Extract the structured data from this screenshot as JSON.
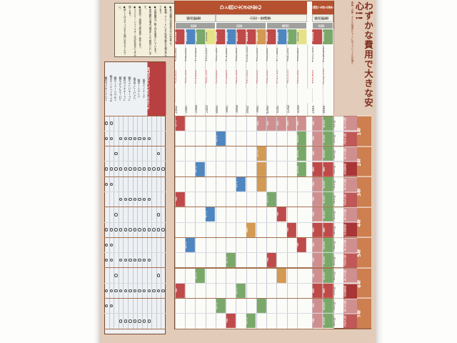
{
  "title": {
    "text": "わずかな費用で大きな安心!!",
    "caption": "車検・点検・オイル交換がセットになってとってもお得!!",
    "color": "#7d2f1f"
  },
  "note_box": {
    "lines": [
      "●表示価格は消費税込みの料金です。",
      "●車種・グレードにより料金が異なる場合があります。",
      "●点検時期はご購入月を基準としています。",
      "●途中解約の場合は規定により精算いたします。",
      "●部品代・油脂代は別途申し受けます。",
      "●エアクリーンフィルターは汚れ具合により交換します。",
      "●詳しくはスタッフまでお問い合わせください。"
    ]
  },
  "left_panel": {
    "header": "メンテナンスパックの内容",
    "items": [
      "エンジンオイル交換",
      "オイルエレメント交換",
      "エアクリーナー点検",
      "スパークプラグ点検",
      "ブレーキオイル交換",
      "ブレーキパッド点検",
      "ワイパーゴム交換",
      "バッテリー点検",
      "クーラント交換",
      "タイヤローテーション",
      "電子制御システム診断",
      "ファンベルト点検",
      "下まわり点検"
    ],
    "circles": [
      [
        0,
        1
      ],
      [
        0,
        1,
        3,
        4,
        5,
        6,
        7,
        8,
        9
      ],
      [
        2,
        11
      ],
      [
        0,
        1,
        2,
        3,
        4,
        5,
        6,
        7,
        8,
        9,
        10,
        11,
        12
      ],
      [
        0,
        1
      ],
      [
        3,
        4,
        5,
        6,
        7,
        8,
        9
      ],
      [
        2,
        11
      ],
      [
        0,
        1,
        2,
        3,
        4,
        5,
        6,
        7,
        8,
        9,
        10,
        11,
        12
      ],
      [
        0,
        1
      ],
      [
        0,
        1,
        3,
        4,
        5,
        6,
        7,
        8,
        9
      ],
      [
        2,
        11
      ],
      [
        0,
        1,
        2,
        3,
        4,
        5,
        6,
        7,
        8,
        9,
        10,
        11,
        12
      ],
      [
        0,
        1
      ],
      [
        3,
        4,
        5,
        6,
        7,
        8,
        9
      ]
    ]
  },
  "table": {
    "bands": [
      {
        "label": "ひと回り大きな安心"
      },
      {
        "label": "ひと回り大きな安心"
      }
    ],
    "class_groups": [
      "軽自動車",
      "小型・普通車",
      "軽自動車"
    ],
    "term_groups": [
      "新車",
      "新車",
      "継続",
      "新車"
    ],
    "columns": [
      {
        "code": "36SA",
        "color": "R",
        "price1": "¥58,080",
        "price2": "¥54,810",
        "sub": "24KD"
      },
      {
        "code": "36SB",
        "color": "B",
        "price1": "¥68,280",
        "price2": "¥64,510",
        "sub": "24KC"
      },
      {
        "code": "36SC",
        "color": "G",
        "price1": "¥79,080",
        "price2": "¥74,810",
        "sub": "24KB"
      },
      {
        "code": "36SD",
        "color": "Y",
        "price1": "¥93,280",
        "price2": "¥88,510",
        "sub": "24KA"
      },
      {
        "code": "42SA",
        "color": "R",
        "price1": "¥63,580",
        "price2": "¥59,810",
        "sub": "30KD"
      },
      {
        "code": "42SB",
        "color": "B",
        "price1": "¥74,880",
        "price2": "¥70,810",
        "sub": "30KC"
      },
      {
        "code": "42SC",
        "color": "R",
        "price1": "¥86,080",
        "price2": "¥81,510",
        "sub": "30KB"
      },
      {
        "code": "48SA",
        "color": "R",
        "price1": "¥100,280",
        "price2": "¥95,040",
        "sub": "36KD"
      },
      {
        "code": "48SB",
        "color": "O",
        "price1": "¥95,040",
        "price2": "¥89,810",
        "sub": "36KC"
      },
      {
        "code": "60SA",
        "color": "R",
        "price1": "¥66,880",
        "price2": "¥62,040",
        "sub": "42KD"
      },
      {
        "code": "60SB",
        "color": "B",
        "price1": "¥77,880",
        "price2": "¥72,710",
        "sub": "42KC"
      },
      {
        "code": "60SC",
        "color": "G",
        "price1": "¥88,280",
        "price2": "¥83,050",
        "sub": "42KB"
      },
      {
        "code": "60SD",
        "color": "Y",
        "price1": "¥99,880",
        "price2": "¥93,500",
        "sub": "42KA"
      },
      {
        "code": "36KA",
        "color": "R",
        "price1": "¥105,600",
        "price2": "¥99,800",
        "sub": "24NA"
      },
      {
        "code": "42KA",
        "color": "G",
        "price1": "¥118,800",
        "price2": "¥112,310",
        "sub": "30NA"
      }
    ],
    "months": [
      "6ヶ月",
      "12ヶ月",
      "18ヶ月",
      "24ヶ月",
      "30ヶ月",
      "36ヶ月",
      "42ヶ月",
      "48ヶ月",
      "54ヶ月",
      "60ヶ月",
      "66ヶ月",
      "72ヶ月",
      "78ヶ月",
      "84ヶ月"
    ],
    "names": [
      "安心点検",
      "法定点検",
      "安心点検",
      "車検整備",
      "安心点検",
      "法定点検",
      "安心点検",
      "車検整備",
      "安心点検",
      "法定点検",
      "安心点検",
      "車検整備",
      "安心点検",
      "法定点検"
    ],
    "name_colors": [
      "P",
      "R2",
      "P",
      "D",
      "P",
      "R2",
      "P",
      "D",
      "P",
      "R2",
      "P",
      "D",
      "P",
      "R2"
    ],
    "years": [
      "1年",
      "2年",
      "3年",
      "4年",
      "5年",
      "6年",
      "7年"
    ],
    "cells": [
      {
        "r": 0,
        "c": 0,
        "color": "R",
        "t": "オイル"
      },
      {
        "r": 0,
        "c": 8,
        "color": "P",
        "t": "初回"
      },
      {
        "r": 0,
        "c": 9,
        "color": "P",
        "t": "初回"
      },
      {
        "r": 0,
        "c": 10,
        "color": "P",
        "t": "初回"
      },
      {
        "r": 0,
        "c": 11,
        "color": "P",
        "t": "初回"
      },
      {
        "r": 0,
        "c": 12,
        "color": "P",
        "t": "初回"
      },
      {
        "r": 0,
        "c": 13,
        "color": "P",
        "t": "点検"
      },
      {
        "r": 0,
        "c": 14,
        "color": "G",
        "t": "¥6,600"
      },
      {
        "r": 1,
        "c": 4,
        "color": "B",
        "t": "オイル"
      },
      {
        "r": 1,
        "c": 12,
        "color": "G",
        "t": "¥6,600"
      },
      {
        "r": 1,
        "c": 13,
        "color": "P",
        "t": "点検"
      },
      {
        "r": 1,
        "c": 14,
        "color": "G",
        "t": "¥8,800"
      },
      {
        "r": 2,
        "c": 8,
        "color": "O",
        "t": "12ヶ月"
      },
      {
        "r": 2,
        "c": 12,
        "color": "G",
        "t": "¥6,600"
      },
      {
        "r": 2,
        "c": 13,
        "color": "P",
        "t": "点検"
      },
      {
        "r": 2,
        "c": 14,
        "color": "G",
        "t": "¥6,600"
      },
      {
        "r": 3,
        "c": 2,
        "color": "B",
        "t": "オイル"
      },
      {
        "r": 3,
        "c": 8,
        "color": "O",
        "t": ""
      },
      {
        "r": 3,
        "c": 12,
        "color": "G",
        "t": "¥8,800"
      },
      {
        "r": 3,
        "c": 13,
        "color": "R",
        "t": "車検"
      },
      {
        "r": 3,
        "c": 14,
        "color": "R",
        "t": "車検"
      },
      {
        "r": 4,
        "c": 6,
        "color": "B",
        "t": "オイル"
      },
      {
        "r": 4,
        "c": 8,
        "color": "O",
        "t": ""
      },
      {
        "r": 4,
        "c": 13,
        "color": "P",
        "t": "点検"
      },
      {
        "r": 4,
        "c": 14,
        "color": "G",
        "t": "¥6,600"
      },
      {
        "r": 5,
        "c": 0,
        "color": "R",
        "t": "点検"
      },
      {
        "r": 5,
        "c": 9,
        "color": "G",
        "t": "オイル"
      },
      {
        "r": 5,
        "c": 13,
        "color": "P",
        "t": "点検"
      },
      {
        "r": 5,
        "c": 14,
        "color": "G",
        "t": "¥8,800"
      },
      {
        "r": 6,
        "c": 3,
        "color": "B",
        "t": "オイル"
      },
      {
        "r": 6,
        "c": 10,
        "color": "R",
        "t": "点検"
      },
      {
        "r": 6,
        "c": 13,
        "color": "P",
        "t": "点検"
      },
      {
        "r": 6,
        "c": 14,
        "color": "G",
        "t": "¥6,600"
      },
      {
        "r": 7,
        "c": 7,
        "color": "O",
        "t": "車検"
      },
      {
        "r": 7,
        "c": 11,
        "color": "R",
        "t": "点検"
      },
      {
        "r": 7,
        "c": 13,
        "color": "R",
        "t": "車検"
      },
      {
        "r": 7,
        "c": 14,
        "color": "R",
        "t": "車検"
      },
      {
        "r": 8,
        "c": 1,
        "color": "B",
        "t": "オイル"
      },
      {
        "r": 8,
        "c": 12,
        "color": "R",
        "t": "点検"
      },
      {
        "r": 8,
        "c": 13,
        "color": "P",
        "t": "点検"
      },
      {
        "r": 8,
        "c": 14,
        "color": "G",
        "t": "¥6,600"
      },
      {
        "r": 9,
        "c": 5,
        "color": "G",
        "t": "オイル"
      },
      {
        "r": 9,
        "c": 9,
        "color": "R",
        "t": "点検"
      },
      {
        "r": 9,
        "c": 13,
        "color": "P",
        "t": "点検"
      },
      {
        "r": 9,
        "c": 14,
        "color": "G",
        "t": "¥8,800"
      },
      {
        "r": 10,
        "c": 2,
        "color": "G",
        "t": "オイル"
      },
      {
        "r": 10,
        "c": 10,
        "color": "O",
        "t": ""
      },
      {
        "r": 10,
        "c": 13,
        "color": "P",
        "t": "点検"
      },
      {
        "r": 10,
        "c": 14,
        "color": "G",
        "t": "¥6,600"
      },
      {
        "r": 11,
        "c": 0,
        "color": "R",
        "t": "点検"
      },
      {
        "r": 11,
        "c": 6,
        "color": "G",
        "t": "オイル"
      },
      {
        "r": 11,
        "c": 13,
        "color": "R",
        "t": "車検"
      },
      {
        "r": 11,
        "c": 14,
        "color": "R",
        "t": "車検"
      },
      {
        "r": 12,
        "c": 4,
        "color": "G",
        "t": "オイル"
      },
      {
        "r": 12,
        "c": 8,
        "color": "G",
        "t": ""
      },
      {
        "r": 12,
        "c": 13,
        "color": "P",
        "t": "点検"
      },
      {
        "r": 12,
        "c": 14,
        "color": "G",
        "t": "¥6,600"
      },
      {
        "r": 13,
        "c": 5,
        "color": "R",
        "t": "点検"
      },
      {
        "r": 13,
        "c": 7,
        "color": "G",
        "t": "オイル"
      },
      {
        "r": 13,
        "c": 13,
        "color": "P",
        "t": "点検"
      },
      {
        "r": 13,
        "c": 14,
        "color": "G",
        "t": "¥8,800"
      }
    ]
  },
  "colors": {
    "sheet_margin": "#e2cbb8",
    "band_orange": "#b5512e",
    "year_band": "#cd7f50",
    "gray_row": "#a0a09c",
    "red_strip": "#b84040",
    "course_R": "#bf4a4a",
    "course_B": "#4f86c0",
    "course_G": "#7aa86a",
    "course_Y": "#e6e28a",
    "course_O": "#d29a52",
    "price_red": "#c03c3c",
    "title_red": "#7d2f1f"
  }
}
